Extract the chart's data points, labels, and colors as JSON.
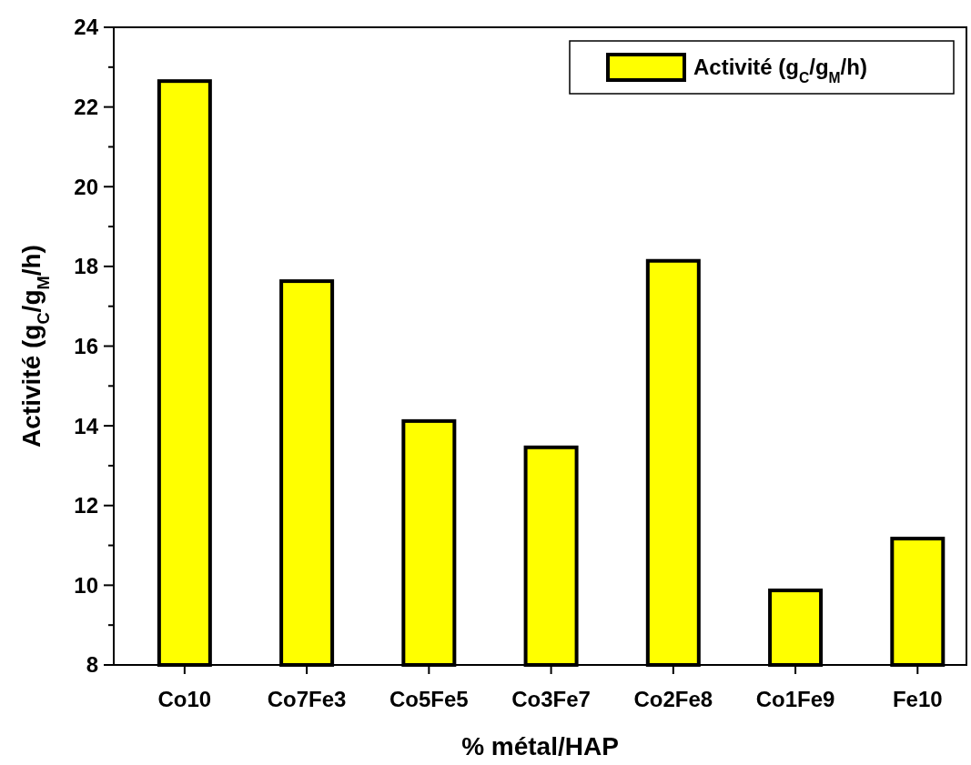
{
  "chart_data": {
    "type": "bar",
    "xlabel": "% métal/HAP",
    "ylabel": "Activité (g$_{C}$/g$_{M}$/h)",
    "categories": [
      "Co10",
      "Co7Fe3",
      "Co5Fe5",
      "Co3Fe7",
      "Co2Fe8",
      "Co1Fe9",
      "Fe10"
    ],
    "series": [
      {
        "name": "Activité (g$_{C}$/g$_{M}$/h)",
        "color": "#ffff00",
        "values": [
          22.65,
          17.63,
          14.12,
          13.46,
          18.14,
          9.87,
          11.17
        ]
      }
    ],
    "ylim": [
      8,
      24
    ],
    "yticks": [
      8,
      {
        "value": 9,
        "label": null
      },
      10,
      {
        "value": 11,
        "label": null
      },
      12,
      {
        "value": 13,
        "label": null
      },
      14,
      {
        "value": 15,
        "label": null
      },
      16,
      {
        "value": 17,
        "label": null
      },
      18,
      {
        "value": 19,
        "label": null
      },
      20,
      {
        "value": 21,
        "label": null
      },
      22,
      {
        "value": 23,
        "label": null
      },
      24
    ],
    "legend": "top right",
    "grid": false
  }
}
